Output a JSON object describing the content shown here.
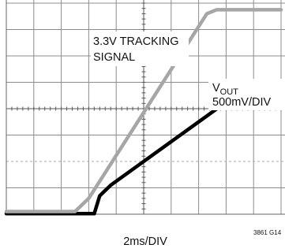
{
  "chart_data": {
    "type": "line",
    "title": "",
    "x_axis_label": "2ms/DIV",
    "figure_id": "3861 G14",
    "grid": true,
    "x_divisions": 10,
    "y_divisions": 8,
    "x_range_div": [
      0,
      10
    ],
    "y_range_div": [
      0,
      8
    ],
    "series": [
      {
        "name": "3.3V TRACKING SIGNAL",
        "color": "#a6a6a6",
        "x_div": [
          0,
          2.5,
          3.0,
          7.3,
          7.65,
          10
        ],
        "y_div": [
          0.1,
          0.1,
          0.6,
          7.6,
          7.75,
          7.75
        ]
      },
      {
        "name": "VOUT",
        "scale": "500mV/DIV",
        "color": "#000000",
        "x_div": [
          0,
          3.2,
          3.4,
          3.8,
          7.8,
          8.15,
          10
        ],
        "y_div": [
          0.02,
          0.02,
          0.7,
          1.1,
          4.1,
          4.15,
          4.15
        ]
      }
    ],
    "annotations": {
      "tracking_label_line1": "3.3V TRACKING",
      "tracking_label_line2": "SIGNAL",
      "vout_label_main": "V",
      "vout_label_sub": "OUT",
      "vout_scale": "500mV/DIV"
    }
  }
}
